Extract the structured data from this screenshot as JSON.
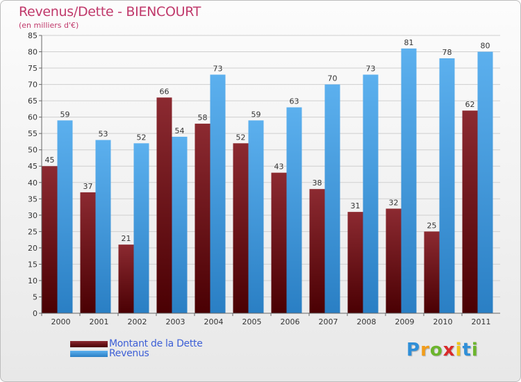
{
  "title": "Revenus/Dette - BIENCOURT",
  "subtitle": "(en milliers d'€)",
  "colors": {
    "dette": "#6b0f14",
    "revenus": "#4da3e6",
    "title": "#c0396b",
    "legend_text": "#3d5fd6"
  },
  "legend": [
    {
      "label": "Montant de la Dette",
      "color": "#6b0f14"
    },
    {
      "label": "Revenus",
      "color": "#4da3e6"
    }
  ],
  "logo": {
    "letters": [
      "P",
      "r",
      "o",
      "x",
      "i",
      "t",
      "i"
    ],
    "colors": [
      "#2f8fd8",
      "#f29d1b",
      "#6cb52d",
      "#d92a2a",
      "#f0c419",
      "#2f8fd8",
      "#6cb52d"
    ]
  },
  "chart_data": {
    "type": "bar",
    "categories": [
      "2000",
      "2001",
      "2002",
      "2003",
      "2004",
      "2005",
      "2006",
      "2007",
      "2008",
      "2009",
      "2010",
      "2011"
    ],
    "series": [
      {
        "name": "Montant de la Dette",
        "values": [
          45,
          37,
          21,
          66,
          58,
          52,
          43,
          38,
          31,
          32,
          25,
          62
        ]
      },
      {
        "name": "Revenus",
        "values": [
          59,
          53,
          52,
          54,
          73,
          59,
          63,
          70,
          73,
          81,
          78,
          80
        ]
      }
    ],
    "ylim": [
      0,
      85
    ],
    "yticks": [
      0,
      5,
      10,
      15,
      20,
      25,
      30,
      35,
      40,
      45,
      50,
      55,
      60,
      65,
      70,
      75,
      80,
      85
    ],
    "grid": true,
    "legend_position": "bottom-left"
  }
}
